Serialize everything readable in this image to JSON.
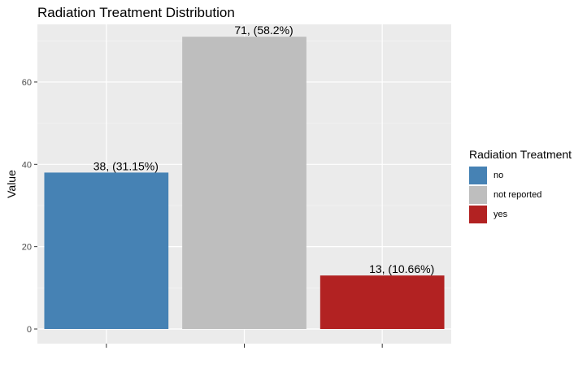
{
  "chart_data": {
    "type": "bar",
    "title": "Radiation Treatment Distribution",
    "xlabel": "",
    "ylabel": "Value",
    "ylim": [
      0,
      74
    ],
    "yticks": [
      0,
      20,
      40,
      60
    ],
    "categories": [
      "no",
      "not reported",
      "yes"
    ],
    "values": [
      38,
      71,
      13
    ],
    "labels": [
      "38, (31.15%)",
      "71, (58.2%)",
      "13, (10.66%)"
    ],
    "colors": [
      "#4682B4",
      "#BEBEBE",
      "#B22222"
    ],
    "legend": {
      "title": "Radiation Treatment",
      "position": "right",
      "items": [
        {
          "label": "no",
          "color": "#4682B4"
        },
        {
          "label": "not reported",
          "color": "#BEBEBE"
        },
        {
          "label": "yes",
          "color": "#B22222"
        }
      ]
    },
    "grid": true,
    "background": "#EBEBEB"
  }
}
